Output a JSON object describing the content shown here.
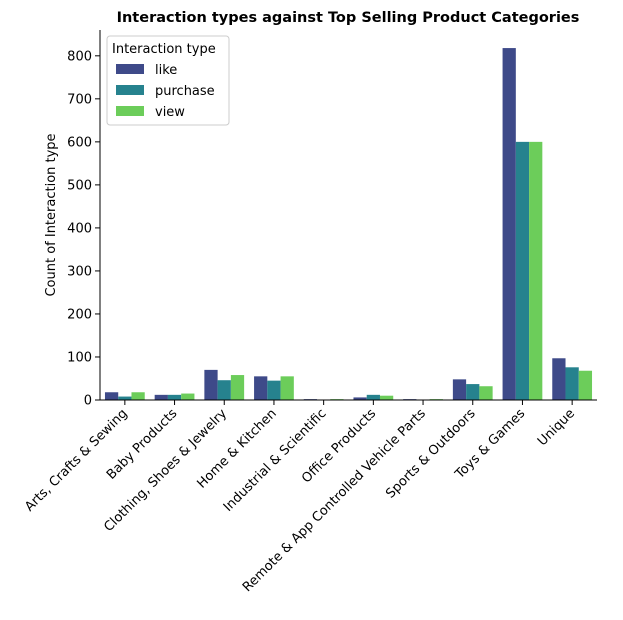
{
  "chart_data": {
    "type": "bar",
    "title": "Interaction types against Top Selling Product Categories",
    "xlabel": "",
    "ylabel": "Count of Interaction type",
    "ylim": [
      0,
      860
    ],
    "yticks": [
      0,
      100,
      200,
      300,
      400,
      500,
      600,
      700,
      800
    ],
    "categories": [
      "Arts, Crafts & Sewing",
      "Baby Products",
      "Clothing, Shoes & Jewelry",
      "Home & Kitchen",
      "Industrial & Scientific",
      "Office Products",
      "Remote & App Controlled Vehicle Parts",
      "Sports & Outdoors",
      "Toys & Games",
      "Unique"
    ],
    "series": [
      {
        "name": "like",
        "color": "#3e4a89",
        "values": [
          18,
          12,
          70,
          55,
          2,
          6,
          2,
          48,
          818,
          97
        ]
      },
      {
        "name": "purchase",
        "color": "#26828e",
        "values": [
          8,
          12,
          46,
          45,
          1,
          12,
          1,
          37,
          600,
          76
        ]
      },
      {
        "name": "view",
        "color": "#6ccd5a",
        "values": [
          18,
          15,
          58,
          55,
          2,
          10,
          2,
          32,
          600,
          68
        ]
      }
    ],
    "legend": {
      "title": "Interaction type",
      "placement": "top-left"
    },
    "grid": false
  }
}
